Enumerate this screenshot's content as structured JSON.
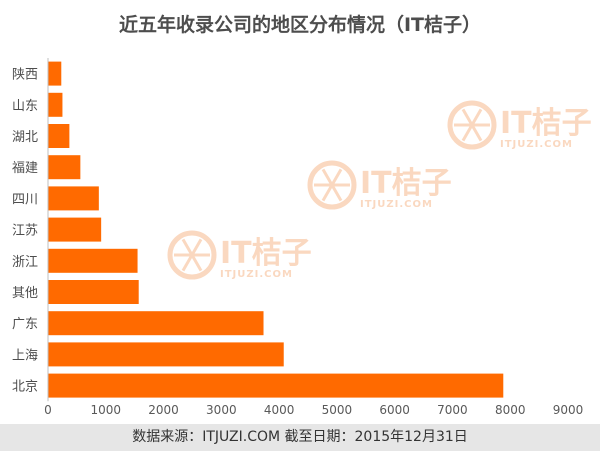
{
  "chart_data": {
    "type": "bar",
    "orientation": "horizontal",
    "title": "近五年收录公司的地区分布情况（IT桔子）",
    "categories": [
      "陕西",
      "山东",
      "湖北",
      "福建",
      "四川",
      "江苏",
      "浙江",
      "其他",
      "广东",
      "上海",
      "北京"
    ],
    "values": [
      230,
      250,
      370,
      560,
      880,
      920,
      1550,
      1570,
      3730,
      4080,
      7880
    ],
    "xlim": [
      0,
      9000
    ],
    "xticks": [
      0,
      1000,
      2000,
      3000,
      4000,
      5000,
      6000,
      7000,
      8000,
      9000
    ],
    "xlabel": "",
    "ylabel": "",
    "grid": false,
    "bar_color": "#ff6a00"
  },
  "watermark": {
    "text": "IT桔子",
    "subtext": "ITJUZI.COM",
    "color": "#f6b98e"
  },
  "footer": {
    "text": "数据来源：ITJUZI.COM  截至日期：2015年12月31日"
  }
}
